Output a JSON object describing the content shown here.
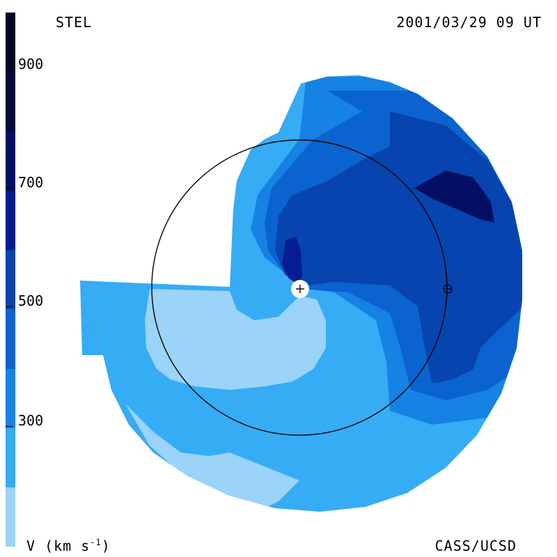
{
  "header": {
    "site": "STEL",
    "datetime": "2001/03/29 09 UT"
  },
  "footer": {
    "unit_main": "V (km s",
    "unit_exp": "-1",
    "unit_close": ")",
    "credit": "CASS/UCSD"
  },
  "colorbar": {
    "tick_labels": [
      "900",
      "700",
      "500",
      "300"
    ],
    "levels": [
      {
        "range": "<200",
        "color": "#9bd3f9"
      },
      {
        "range": "200-300",
        "color": "#36acf5"
      },
      {
        "range": "300-400",
        "color": "#1682e3"
      },
      {
        "range": "400-500",
        "color": "#0b63cf"
      },
      {
        "range": "500-600",
        "color": "#0744b0"
      },
      {
        "range": "600-700",
        "color": "#041d92"
      },
      {
        "range": "700-800",
        "color": "#030f63"
      },
      {
        "range": "800-900",
        "color": "#020a3f"
      },
      {
        "range": ">900",
        "color": "#020825"
      }
    ]
  },
  "map": {
    "sun_marker": "+",
    "earth_marker": "⊕",
    "palette": {
      "outer": "#36acf5",
      "light": "#9bd3f9",
      "mid": "#1682e3",
      "medium_dark": "#0b63cf",
      "dark": "#0744b0",
      "darker": "#041d92",
      "darkest": "#030f63"
    }
  }
}
